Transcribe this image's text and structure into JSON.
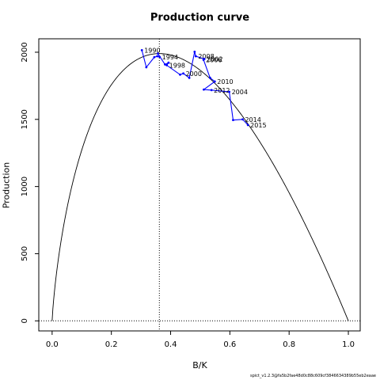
{
  "chart_data": {
    "type": "line",
    "title": "Production curve",
    "xlabel": "B/K",
    "ylabel": "Production",
    "xlim": [
      -0.045,
      1.04
    ],
    "ylim": [
      -75,
      2100
    ],
    "x_ticks": [
      0.0,
      0.2,
      0.4,
      0.6,
      0.8,
      1.0
    ],
    "x_tick_labels": [
      "0.0",
      "0.2",
      "0.4",
      "0.6",
      "0.8",
      "1.0"
    ],
    "y_ticks": [
      0,
      500,
      1000,
      1500,
      2000
    ],
    "y_tick_labels": [
      "0",
      "500",
      "1000",
      "1500",
      "2000"
    ],
    "curve": {
      "bmsy_over_k": 0.362,
      "msy": 1990
    },
    "bmsy_line_x": 0.362,
    "zero_line_y": 0,
    "series": [
      {
        "points": [
          {
            "x": 0.303,
            "y": 2015,
            "label": "1990"
          },
          {
            "x": 0.318,
            "y": 1888,
            "label": ""
          },
          {
            "x": 0.345,
            "y": 1963,
            "label": ""
          },
          {
            "x": 0.355,
            "y": 1970,
            "label": ""
          },
          {
            "x": 0.363,
            "y": 1965,
            "label": "1994"
          },
          {
            "x": 0.357,
            "y": 1990,
            "label": ""
          },
          {
            "x": 0.381,
            "y": 1909,
            "label": ""
          },
          {
            "x": 0.393,
            "y": 1922,
            "label": ""
          },
          {
            "x": 0.387,
            "y": 1903,
            "label": "1998"
          },
          {
            "x": 0.432,
            "y": 1833,
            "label": ""
          },
          {
            "x": 0.443,
            "y": 1842,
            "label": "2000"
          },
          {
            "x": 0.463,
            "y": 1809,
            "label": ""
          },
          {
            "x": 0.481,
            "y": 2003,
            "label": ""
          },
          {
            "x": 0.485,
            "y": 1970,
            "label": "2008"
          },
          {
            "x": 0.514,
            "y": 1950,
            "label": "2002"
          },
          {
            "x": 0.511,
            "y": 1944,
            "label": "2006"
          },
          {
            "x": 0.533,
            "y": 1810,
            "label": ""
          },
          {
            "x": 0.549,
            "y": 1782,
            "label": "2010"
          },
          {
            "x": 0.512,
            "y": 1722,
            "label": ""
          },
          {
            "x": 0.538,
            "y": 1718,
            "label": "2012"
          },
          {
            "x": 0.598,
            "y": 1705,
            "label": "2004"
          },
          {
            "x": 0.611,
            "y": 1495,
            "label": ""
          },
          {
            "x": 0.643,
            "y": 1500,
            "label": "2014"
          },
          {
            "x": 0.661,
            "y": 1458,
            "label": "2015"
          }
        ],
        "color": "#0000ff"
      }
    ],
    "curve_color": "#000000",
    "grid": false,
    "legend": "none"
  },
  "footer": "spict_v1.2.3@fa5b2fae48d0c88c609cf3846634389b55eb2eaae"
}
